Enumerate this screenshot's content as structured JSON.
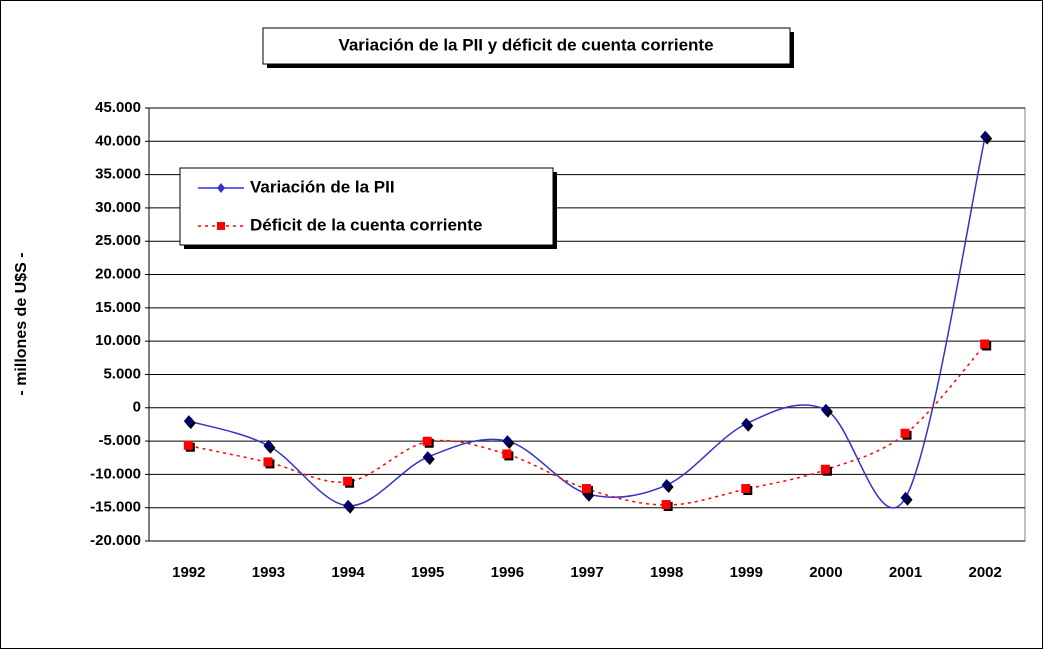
{
  "chart_data": {
    "type": "line",
    "title": "Variación de la PII y déficit de cuenta corriente",
    "y_label": "- millones de U$S -",
    "categories": [
      "1992",
      "1993",
      "1994",
      "1995",
      "1996",
      "1997",
      "1998",
      "1999",
      "2000",
      "2001",
      "2002"
    ],
    "series": [
      {
        "name": "Variación de la PII",
        "color": "#3333cc",
        "marker": "diamond",
        "dashed": false,
        "smooth": true,
        "values": [
          -2000,
          -5700,
          -14700,
          -7400,
          -5000,
          -12900,
          -11600,
          -2400,
          -300,
          -13500,
          40700
        ]
      },
      {
        "name": "Déficit de la cuenta corriente",
        "color": "#ff0000",
        "marker": "square",
        "dashed": true,
        "smooth": true,
        "values": [
          -5700,
          -8200,
          -11100,
          -5100,
          -7000,
          -12200,
          -14600,
          -12200,
          -9300,
          -3900,
          9500
        ]
      }
    ],
    "ylim": [
      -20000,
      45000
    ],
    "yticks": [
      {
        "value": -20000,
        "label": "-20.000"
      },
      {
        "value": -15000,
        "label": "-15.000"
      },
      {
        "value": -10000,
        "label": "-10.000"
      },
      {
        "value": -5000,
        "label": "-5.000"
      },
      0,
      {
        "value": 5000,
        "label": "5.000"
      },
      {
        "value": 10000,
        "label": "10.000"
      },
      {
        "value": 15000,
        "label": "15.000"
      },
      {
        "value": 20000,
        "label": "20.000"
      },
      {
        "value": 25000,
        "label": "25.000"
      },
      {
        "value": 30000,
        "label": "30.000"
      },
      {
        "value": 35000,
        "label": "35.000"
      },
      {
        "value": 40000,
        "label": "40.000"
      },
      {
        "value": 45000,
        "label": "45.000"
      }
    ],
    "grid": true,
    "legend": "upper left"
  }
}
